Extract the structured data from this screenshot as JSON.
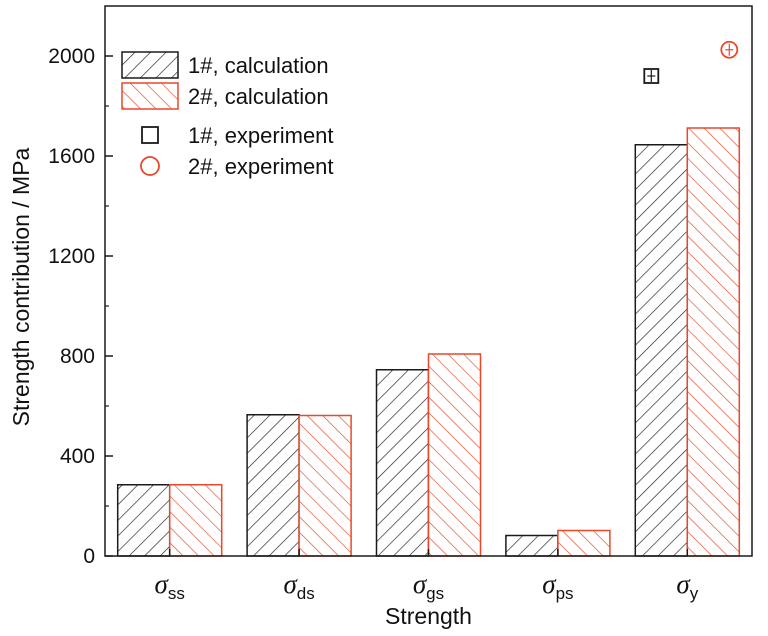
{
  "chart_data": {
    "type": "bar",
    "categories": [
      {
        "symbol": "σ",
        "sub": "ss"
      },
      {
        "symbol": "σ",
        "sub": "ds"
      },
      {
        "symbol": "σ",
        "sub": "gs"
      },
      {
        "symbol": "σ",
        "sub": "ps"
      },
      {
        "symbol": "σ",
        "sub": "y"
      }
    ],
    "series": [
      {
        "name": "1#, calculation",
        "values": [
          285,
          565,
          745,
          82,
          1645
        ],
        "color": "#1a1a1a",
        "hatch": "forward"
      },
      {
        "name": "2#, calculation",
        "values": [
          285,
          562,
          808,
          102,
          1712
        ],
        "color": "#e8492a",
        "hatch": "backward"
      }
    ],
    "experiment": [
      {
        "name": "1#, experiment",
        "category_index": 4,
        "value": 1920,
        "marker": "square",
        "color": "#1a1a1a"
      },
      {
        "name": "2#, experiment",
        "category_index": 4,
        "value": 2025,
        "marker": "circle",
        "color": "#e8492a"
      }
    ],
    "xlabel": "Strength",
    "ylabel": "Strength contribution / MPa",
    "ylim": [
      0,
      2200
    ],
    "yticks": [
      "0",
      "400",
      "800",
      "1200",
      "1600",
      "2000"
    ],
    "legend_position": "top-left",
    "grid": false
  }
}
